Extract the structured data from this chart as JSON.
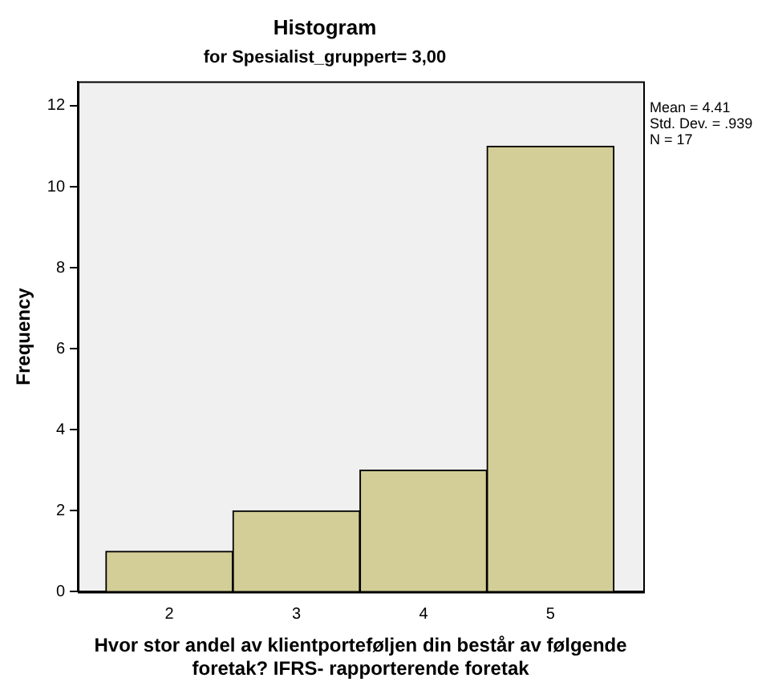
{
  "chart_data": {
    "type": "histogram",
    "title": "Histogram",
    "subtitle": "for Spesialist_gruppert= 3,00",
    "xlabel": "Hvor stor andel av klientporteføljen din består av følgende foretak? IFRS- rapporterende foretak",
    "ylabel": "Frequency",
    "bins": [
      1.5,
      2.5,
      3.5,
      4.5,
      5.5
    ],
    "values": [
      1,
      2,
      3,
      11
    ],
    "color": "#d3ce97",
    "xlim": [
      1.28,
      5.73
    ],
    "xticks": [
      2,
      3,
      4,
      5
    ],
    "ylim": [
      0,
      12.6
    ],
    "yticks": [
      0,
      2,
      4,
      6,
      8,
      10,
      12
    ],
    "grid": false,
    "legend": false,
    "annotations": [
      "Mean = 4.41",
      "Std. Dev. = .939",
      "N = 17"
    ]
  }
}
